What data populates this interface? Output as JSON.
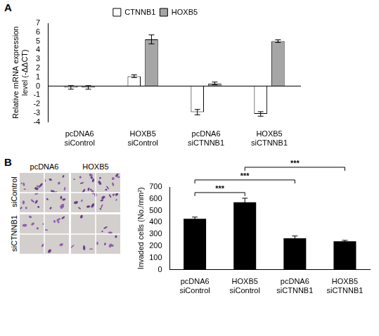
{
  "chart_data": [
    {
      "panel_label": "A",
      "type": "bar",
      "y_label": "Relative mRNA expression level (-ΔΔCT)",
      "categories": [
        "pcDNA6 siControl",
        "HOXB5 siControl",
        "pcDNA6 siCTNNB1",
        "HOXB5 siCTNNB1"
      ],
      "series": [
        {
          "name": "CTNNB1",
          "color": "#ffffff",
          "values": [
            -0.15,
            1.1,
            -2.9,
            -3.1
          ],
          "errors": [
            0.2,
            0.15,
            0.3,
            0.25
          ]
        },
        {
          "name": "HOXB5",
          "color": "#a6a6a6",
          "values": [
            -0.15,
            5.2,
            0.3,
            5.0
          ],
          "errors": [
            0.2,
            0.5,
            0.15,
            0.15
          ]
        }
      ],
      "ylim": [
        -4,
        7
      ],
      "yticks": [
        -4,
        -3,
        -2,
        -1,
        0,
        1,
        2,
        3,
        4,
        5,
        6,
        7
      ],
      "legend": "top",
      "grid": false
    },
    {
      "panel_label": "B",
      "type": "bar",
      "y_label": "Invaded cells (No./mm²)",
      "categories": [
        "pcDNA6 siControl",
        "HOXB5 siControl",
        "pcDNA6 siCTNNB1",
        "HOXB5 siCTNNB1"
      ],
      "values": [
        430,
        570,
        265,
        240
      ],
      "errors": [
        15,
        35,
        20,
        8
      ],
      "color": "#000000",
      "ylim": [
        0,
        700
      ],
      "yticks": [
        0,
        100,
        200,
        300,
        400,
        500,
        600,
        700
      ],
      "significance": [
        {
          "from": 0,
          "to": 1,
          "label": "***"
        },
        {
          "from": 0,
          "to": 2,
          "label": "***"
        },
        {
          "from": 1,
          "to": 3,
          "label": "***"
        }
      ],
      "grid": false
    }
  ],
  "micrograph": {
    "columns": [
      "pcDNA6",
      "HOXB5"
    ],
    "rows": [
      "siControl",
      "siCTNNB1"
    ]
  }
}
